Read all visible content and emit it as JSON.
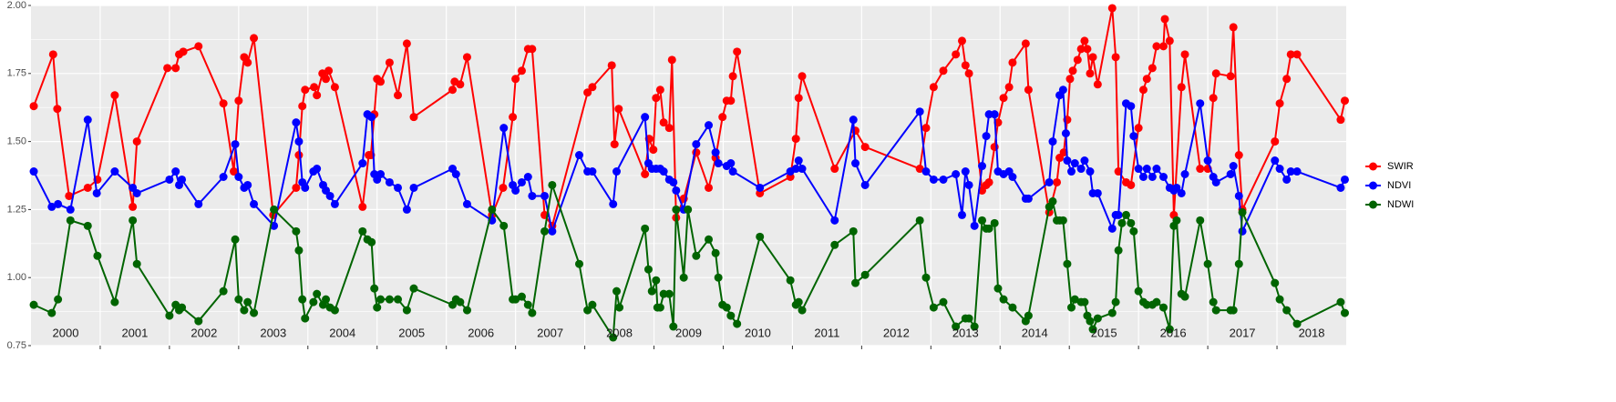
{
  "chart_data": {
    "type": "line",
    "xlim": [
      2000,
      2019
    ],
    "xticks": [
      2001,
      2002,
      2003,
      2004,
      2005,
      2006,
      2007,
      2008,
      2009,
      2010,
      2011,
      2012,
      2013,
      2014,
      2015,
      2016,
      2017,
      2018
    ],
    "year_labels": [
      {
        "value": 2000.5,
        "label": "2000"
      },
      {
        "value": 2001.5,
        "label": "2001"
      },
      {
        "value": 2002.5,
        "label": "2002"
      },
      {
        "value": 2003.5,
        "label": "2003"
      },
      {
        "value": 2004.5,
        "label": "2004"
      },
      {
        "value": 2005.5,
        "label": "2005"
      },
      {
        "value": 2006.5,
        "label": "2006"
      },
      {
        "value": 2007.5,
        "label": "2007"
      },
      {
        "value": 2008.5,
        "label": "2008"
      },
      {
        "value": 2009.5,
        "label": "2009"
      },
      {
        "value": 2010.5,
        "label": "2010"
      },
      {
        "value": 2011.5,
        "label": "2011"
      },
      {
        "value": 2012.5,
        "label": "2012"
      },
      {
        "value": 2013.5,
        "label": "2013"
      },
      {
        "value": 2014.5,
        "label": "2014"
      },
      {
        "value": 2015.5,
        "label": "2015"
      },
      {
        "value": 2016.5,
        "label": "2016"
      },
      {
        "value": 2017.5,
        "label": "2017"
      },
      {
        "value": 2018.5,
        "label": "2018"
      }
    ],
    "ylim": [
      0.75,
      2.0
    ],
    "yticks": [
      0.75,
      {
        "value": 1,
        "label": "1.00"
      },
      1.25,
      {
        "value": 1.5,
        "label": "1.50"
      },
      1.75,
      {
        "value": 2,
        "label": "2.00"
      }
    ],
    "grid": true,
    "legend": "right",
    "series": [
      {
        "name": "SWIR",
        "color": "#ff0000",
        "x": [
          2000.04,
          2000.32,
          2000.38,
          2000.55,
          2000.82,
          2000.96,
          2001.21,
          2001.47,
          2001.53,
          2001.97,
          2002.09,
          2002.14,
          2002.2,
          2002.42,
          2002.78,
          2002.93,
          2003.0,
          2003.08,
          2003.13,
          2003.22,
          2003.5,
          2003.83,
          2003.87,
          2003.92,
          2003.96,
          2004.09,
          2004.13,
          2004.21,
          2004.26,
          2004.3,
          2004.39,
          2004.79,
          2004.88,
          2004.91,
          2004.96,
          2005.0,
          2005.05,
          2005.18,
          2005.3,
          2005.43,
          2005.53,
          2006.09,
          2006.12,
          2006.2,
          2006.3,
          2006.66,
          2006.82,
          2006.96,
          2007.0,
          2007.09,
          2007.18,
          2007.24,
          2007.42,
          2007.53,
          2008.04,
          2008.11,
          2008.39,
          2008.43,
          2008.49,
          2008.87,
          2008.93,
          2008.99,
          2009.03,
          2009.09,
          2009.14,
          2009.22,
          2009.26,
          2009.32,
          2009.43,
          2009.61,
          2009.79,
          2009.89,
          2009.99,
          2010.05,
          2010.11,
          2010.14,
          2010.2,
          2010.53,
          2010.97,
          2011.05,
          2011.09,
          2011.14,
          2011.61,
          2011.91,
          2012.05,
          2012.84,
          2012.93,
          2013.04,
          2013.18,
          2013.36,
          2013.45,
          2013.5,
          2013.55,
          2013.74,
          2013.8,
          2013.84,
          2013.92,
          2013.97,
          2014.05,
          2014.13,
          2014.18,
          2014.37,
          2014.41,
          2014.71,
          2014.82,
          2014.86,
          2014.92,
          2014.97,
          2015.01,
          2015.05,
          2015.12,
          2015.17,
          2015.22,
          2015.26,
          2015.3,
          2015.34,
          2015.41,
          2015.62,
          2015.67,
          2015.71,
          2015.82,
          2015.89,
          2016.0,
          2016.07,
          2016.12,
          2016.2,
          2016.26,
          2016.36,
          2016.38,
          2016.45,
          2016.51,
          2016.62,
          2016.67,
          2016.89,
          2017.0,
          2017.08,
          2017.12,
          2017.33,
          2017.37,
          2017.45,
          2017.5,
          2017.97,
          2018.04,
          2018.14,
          2018.2,
          2018.29,
          2018.92,
          2018.98
        ],
        "values": [
          1.63,
          1.82,
          1.62,
          1.3,
          1.33,
          1.36,
          1.67,
          1.26,
          1.5,
          1.77,
          1.77,
          1.82,
          1.83,
          1.85,
          1.64,
          1.39,
          1.65,
          1.81,
          1.79,
          1.88,
          1.23,
          1.33,
          1.45,
          1.63,
          1.69,
          1.7,
          1.67,
          1.75,
          1.73,
          1.76,
          1.7,
          1.26,
          1.45,
          1.45,
          1.6,
          1.73,
          1.72,
          1.79,
          1.67,
          1.86,
          1.59,
          1.69,
          1.72,
          1.71,
          1.81,
          1.23,
          1.33,
          1.59,
          1.73,
          1.76,
          1.84,
          1.84,
          1.23,
          1.19,
          1.68,
          1.7,
          1.78,
          1.49,
          1.62,
          1.38,
          1.51,
          1.47,
          1.66,
          1.69,
          1.57,
          1.55,
          1.8,
          1.22,
          1.29,
          1.46,
          1.33,
          1.44,
          1.59,
          1.65,
          1.65,
          1.74,
          1.83,
          1.31,
          1.37,
          1.51,
          1.66,
          1.74,
          1.4,
          1.54,
          1.48,
          1.4,
          1.55,
          1.7,
          1.76,
          1.82,
          1.87,
          1.78,
          1.75,
          1.32,
          1.34,
          1.35,
          1.48,
          1.57,
          1.66,
          1.7,
          1.79,
          1.86,
          1.69,
          1.24,
          1.35,
          1.44,
          1.46,
          1.58,
          1.73,
          1.76,
          1.8,
          1.84,
          1.87,
          1.84,
          1.75,
          1.81,
          1.71,
          1.99,
          1.81,
          1.39,
          1.35,
          1.34,
          1.55,
          1.69,
          1.73,
          1.77,
          1.85,
          1.85,
          1.95,
          1.87,
          1.23,
          1.7,
          1.82,
          1.4,
          1.4,
          1.66,
          1.75,
          1.74,
          1.92,
          1.45,
          1.25,
          1.5,
          1.64,
          1.73,
          1.82,
          1.82,
          1.58,
          1.65
        ]
      },
      {
        "name": "NDVI",
        "color": "#0000ff",
        "x": [
          2000.04,
          2000.3,
          2000.39,
          2000.57,
          2000.82,
          2000.95,
          2001.21,
          2001.47,
          2001.53,
          2002.0,
          2002.09,
          2002.14,
          2002.18,
          2002.42,
          2002.78,
          2002.95,
          2003.0,
          2003.08,
          2003.13,
          2003.22,
          2003.51,
          2003.83,
          2003.87,
          2003.92,
          2003.96,
          2004.08,
          2004.13,
          2004.22,
          2004.26,
          2004.32,
          2004.39,
          2004.79,
          2004.86,
          2004.92,
          2004.96,
          2005.0,
          2005.05,
          2005.18,
          2005.3,
          2005.43,
          2005.53,
          2006.09,
          2006.14,
          2006.3,
          2006.66,
          2006.83,
          2006.96,
          2007.0,
          2007.09,
          2007.18,
          2007.24,
          2007.42,
          2007.53,
          2007.92,
          2008.04,
          2008.11,
          2008.41,
          2008.46,
          2008.87,
          2008.92,
          2008.97,
          2009.03,
          2009.09,
          2009.14,
          2009.22,
          2009.28,
          2009.32,
          2009.43,
          2009.61,
          2009.79,
          2009.89,
          2009.93,
          2010.05,
          2010.11,
          2010.14,
          2010.53,
          2010.97,
          2011.05,
          2011.09,
          2011.14,
          2011.61,
          2011.88,
          2011.91,
          2012.05,
          2012.84,
          2012.93,
          2013.04,
          2013.18,
          2013.36,
          2013.45,
          2013.5,
          2013.55,
          2013.63,
          2013.74,
          2013.8,
          2013.84,
          2013.92,
          2013.97,
          2014.05,
          2014.13,
          2014.18,
          2014.37,
          2014.41,
          2014.71,
          2014.76,
          2014.86,
          2014.91,
          2014.95,
          2014.97,
          2015.03,
          2015.08,
          2015.17,
          2015.22,
          2015.3,
          2015.34,
          2015.41,
          2015.62,
          2015.67,
          2015.71,
          2015.82,
          2015.89,
          2015.93,
          2016.0,
          2016.07,
          2016.12,
          2016.2,
          2016.26,
          2016.36,
          2016.45,
          2016.51,
          2016.55,
          2016.62,
          2016.67,
          2016.89,
          2017.0,
          2017.08,
          2017.12,
          2017.33,
          2017.37,
          2017.45,
          2017.5,
          2017.97,
          2018.04,
          2018.14,
          2018.2,
          2018.29,
          2018.92,
          2018.98
        ],
        "values": [
          1.39,
          1.26,
          1.27,
          1.25,
          1.58,
          1.31,
          1.39,
          1.33,
          1.31,
          1.36,
          1.39,
          1.34,
          1.36,
          1.27,
          1.37,
          1.49,
          1.37,
          1.33,
          1.34,
          1.27,
          1.19,
          1.57,
          1.5,
          1.35,
          1.33,
          1.39,
          1.4,
          1.34,
          1.32,
          1.3,
          1.27,
          1.42,
          1.6,
          1.59,
          1.38,
          1.36,
          1.38,
          1.35,
          1.33,
          1.25,
          1.33,
          1.4,
          1.38,
          1.27,
          1.21,
          1.55,
          1.34,
          1.32,
          1.35,
          1.37,
          1.3,
          1.3,
          1.17,
          1.45,
          1.39,
          1.39,
          1.27,
          1.39,
          1.59,
          1.42,
          1.4,
          1.4,
          1.4,
          1.39,
          1.36,
          1.35,
          1.32,
          1.25,
          1.49,
          1.56,
          1.46,
          1.42,
          1.41,
          1.42,
          1.39,
          1.33,
          1.39,
          1.4,
          1.43,
          1.4,
          1.21,
          1.58,
          1.42,
          1.34,
          1.61,
          1.39,
          1.36,
          1.36,
          1.38,
          1.23,
          1.39,
          1.34,
          1.19,
          1.41,
          1.52,
          1.6,
          1.6,
          1.39,
          1.38,
          1.39,
          1.37,
          1.29,
          1.29,
          1.35,
          1.5,
          1.67,
          1.69,
          1.53,
          1.43,
          1.39,
          1.42,
          1.4,
          1.43,
          1.39,
          1.31,
          1.31,
          1.18,
          1.23,
          1.23,
          1.64,
          1.63,
          1.52,
          1.4,
          1.37,
          1.4,
          1.37,
          1.4,
          1.37,
          1.33,
          1.32,
          1.33,
          1.31,
          1.38,
          1.64,
          1.43,
          1.37,
          1.35,
          1.38,
          1.41,
          1.3,
          1.17,
          1.43,
          1.4,
          1.36,
          1.39,
          1.39,
          1.33,
          1.36
        ]
      },
      {
        "name": "NDWI",
        "color": "#006400",
        "x": [
          2000.04,
          2000.3,
          2000.39,
          2000.57,
          2000.82,
          2000.96,
          2001.21,
          2001.47,
          2001.53,
          2002.0,
          2002.09,
          2002.14,
          2002.18,
          2002.42,
          2002.78,
          2002.95,
          2003.0,
          2003.08,
          2003.13,
          2003.22,
          2003.51,
          2003.83,
          2003.87,
          2003.92,
          2003.96,
          2004.08,
          2004.13,
          2004.22,
          2004.26,
          2004.32,
          2004.39,
          2004.79,
          2004.86,
          2004.92,
          2004.96,
          2005.0,
          2005.05,
          2005.18,
          2005.3,
          2005.43,
          2005.53,
          2006.09,
          2006.14,
          2006.2,
          2006.3,
          2006.66,
          2006.83,
          2006.96,
          2007.0,
          2007.09,
          2007.18,
          2007.24,
          2007.42,
          2007.53,
          2007.92,
          2008.04,
          2008.11,
          2008.41,
          2008.46,
          2008.5,
          2008.87,
          2008.92,
          2008.97,
          2009.03,
          2009.05,
          2009.09,
          2009.14,
          2009.22,
          2009.28,
          2009.32,
          2009.43,
          2009.49,
          2009.61,
          2009.79,
          2009.89,
          2009.93,
          2009.99,
          2010.05,
          2010.11,
          2010.2,
          2010.53,
          2010.97,
          2011.05,
          2011.09,
          2011.14,
          2011.61,
          2011.88,
          2011.91,
          2012.05,
          2012.84,
          2012.93,
          2013.04,
          2013.18,
          2013.36,
          2013.5,
          2013.55,
          2013.63,
          2013.74,
          2013.8,
          2013.84,
          2013.92,
          2013.97,
          2014.05,
          2014.18,
          2014.37,
          2014.41,
          2014.71,
          2014.76,
          2014.82,
          2014.86,
          2014.91,
          2014.97,
          2015.03,
          2015.08,
          2015.17,
          2015.22,
          2015.26,
          2015.3,
          2015.34,
          2015.41,
          2015.62,
          2015.67,
          2015.71,
          2015.76,
          2015.82,
          2015.89,
          2015.93,
          2016.0,
          2016.07,
          2016.12,
          2016.2,
          2016.26,
          2016.36,
          2016.45,
          2016.51,
          2016.55,
          2016.62,
          2016.67,
          2016.89,
          2017.0,
          2017.08,
          2017.12,
          2017.33,
          2017.37,
          2017.45,
          2017.5,
          2017.97,
          2018.04,
          2018.14,
          2018.29,
          2018.92,
          2018.98
        ],
        "values": [
          0.9,
          0.87,
          0.92,
          1.21,
          1.19,
          1.08,
          0.91,
          1.21,
          1.05,
          0.86,
          0.9,
          0.88,
          0.89,
          0.84,
          0.95,
          1.14,
          0.92,
          0.88,
          0.91,
          0.87,
          1.25,
          1.17,
          1.1,
          0.92,
          0.85,
          0.91,
          0.94,
          0.9,
          0.92,
          0.89,
          0.88,
          1.17,
          1.14,
          1.13,
          0.96,
          0.89,
          0.92,
          0.92,
          0.92,
          0.88,
          0.96,
          0.9,
          0.92,
          0.91,
          0.88,
          1.25,
          1.19,
          0.92,
          0.92,
          0.93,
          0.9,
          0.87,
          1.17,
          1.34,
          1.05,
          0.88,
          0.9,
          0.78,
          0.95,
          0.89,
          1.18,
          1.03,
          0.95,
          0.99,
          0.89,
          0.89,
          0.94,
          0.94,
          0.82,
          1.25,
          1.0,
          1.25,
          1.08,
          1.14,
          1.09,
          1.0,
          0.9,
          0.89,
          0.86,
          0.83,
          1.15,
          0.99,
          0.9,
          0.91,
          0.88,
          1.12,
          1.17,
          0.98,
          1.01,
          1.21,
          1.0,
          0.89,
          0.91,
          0.82,
          0.85,
          0.85,
          0.82,
          1.21,
          1.18,
          1.18,
          1.2,
          0.96,
          0.92,
          0.89,
          0.84,
          0.86,
          1.26,
          1.28,
          1.21,
          1.21,
          1.21,
          1.05,
          0.89,
          0.92,
          0.91,
          0.91,
          0.86,
          0.84,
          0.81,
          0.85,
          0.87,
          0.91,
          1.1,
          1.2,
          1.23,
          1.2,
          1.17,
          0.95,
          0.91,
          0.9,
          0.9,
          0.91,
          0.89,
          0.81,
          1.19,
          1.21,
          0.94,
          0.93,
          1.21,
          1.05,
          0.91,
          0.88,
          0.88,
          0.88,
          1.05,
          1.24,
          0.98,
          0.92,
          0.88,
          0.83,
          0.91,
          0.87
        ]
      }
    ]
  }
}
